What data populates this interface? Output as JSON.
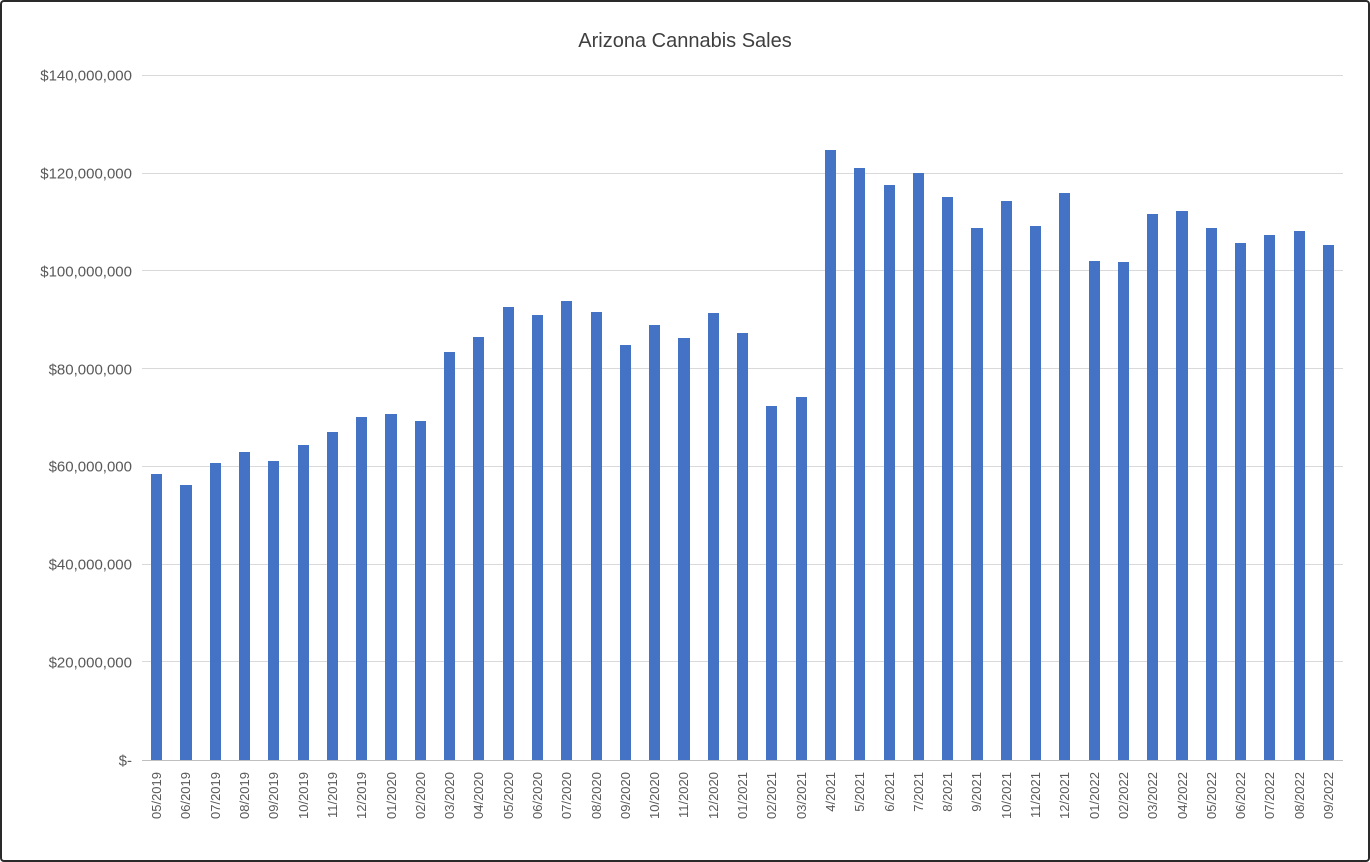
{
  "chart_data": {
    "type": "bar",
    "title": "Arizona Cannabis Sales",
    "xlabel": "",
    "ylabel": "",
    "legend": "none",
    "grid": "horizontal",
    "ylim": [
      0,
      140000000
    ],
    "y_tick_interval": 20000000,
    "y_tick_labels": [
      "$-",
      "$20,000,000",
      "$40,000,000",
      "$60,000,000",
      "$80,000,000",
      "$100,000,000",
      "$120,000,000",
      "$140,000,000"
    ],
    "categories": [
      "05/2019",
      "06/2019",
      "07/2019",
      "08/2019",
      "09/2019",
      "10/2019",
      "11/2019",
      "12/2019",
      "01/2020",
      "02/2020",
      "03/2020",
      "04/2020",
      "05/2020",
      "06/2020",
      "07/2020",
      "08/2020",
      "09/2020",
      "10/2020",
      "11/2020",
      "12/2020",
      "01/2021",
      "02/2021",
      "03/2021",
      "4/2021",
      "5/2021",
      "6/2021",
      "7/2021",
      "8/2021",
      "9/2021",
      "10/2021",
      "11/2021",
      "12/2021",
      "01/2022",
      "02/2022",
      "03/2022",
      "04/2022",
      "05/2022",
      "06/2022",
      "07/2022",
      "08/2022",
      "09/2022"
    ],
    "values": [
      58600000,
      56300000,
      60800000,
      63100000,
      61300000,
      64400000,
      67100000,
      70300000,
      70800000,
      69400000,
      83600000,
      86600000,
      92800000,
      91100000,
      93900000,
      91700000,
      85000000,
      89100000,
      86300000,
      91500000,
      87300000,
      72400000,
      74200000,
      124900000,
      121100000,
      117700000,
      120100000,
      115200000,
      108900000,
      114400000,
      109300000,
      116000000,
      102100000,
      102000000,
      111700000,
      112400000,
      108800000,
      105900000,
      107400000,
      108300000,
      105400000
    ],
    "bar_color": "#4472C4",
    "gridline_color": "#D9D9D9",
    "axis_line_color": "#BFBFBF",
    "tick_label_color": "#595959",
    "title_color": "#3F3F3F"
  }
}
